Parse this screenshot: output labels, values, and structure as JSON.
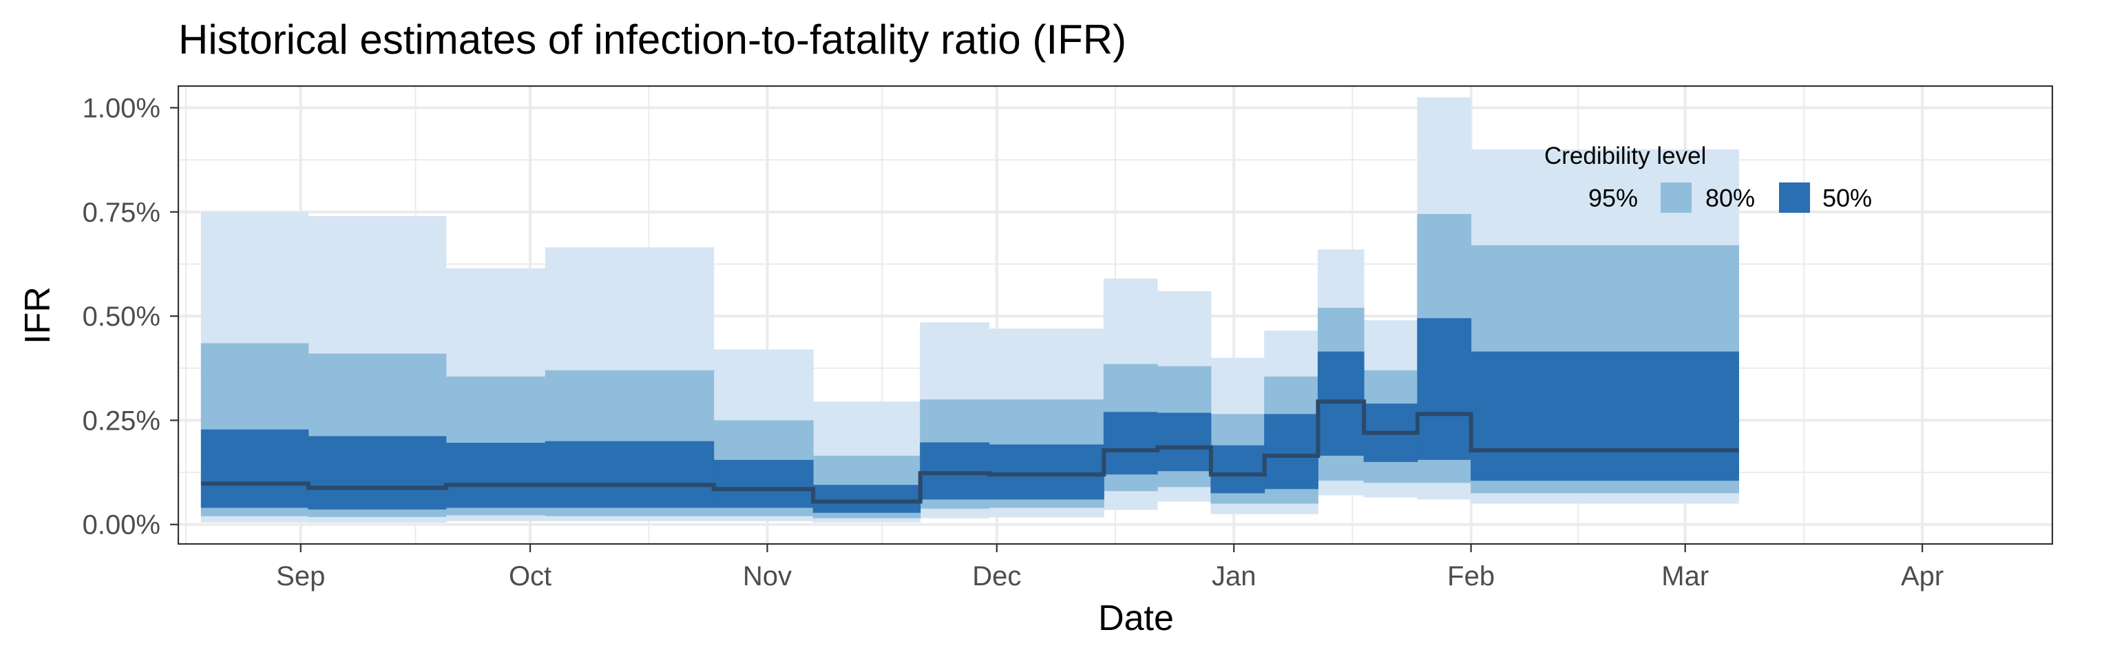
{
  "chart_data": {
    "type": "area",
    "title": "Historical estimates of infection-to-fatality ratio (IFR)",
    "xlabel": "Date",
    "ylabel": "IFR",
    "xlim": [
      "2020-08-16",
      "2021-04-18"
    ],
    "ylim": [
      -0.000467,
      0.01052
    ],
    "x_ticks": [
      {
        "date": "2020-09-01",
        "label": "Sep"
      },
      {
        "date": "2020-10-01",
        "label": "Oct"
      },
      {
        "date": "2020-11-01",
        "label": "Nov"
      },
      {
        "date": "2020-12-01",
        "label": "Dec"
      },
      {
        "date": "2021-01-01",
        "label": "Jan"
      },
      {
        "date": "2021-02-01",
        "label": "Feb"
      },
      {
        "date": "2021-03-01",
        "label": "Mar"
      },
      {
        "date": "2021-04-01",
        "label": "Apr"
      }
    ],
    "y_ticks": [
      {
        "value": 0,
        "label": "0.00%"
      },
      {
        "value": 0.0025,
        "label": "0.25%"
      },
      {
        "value": 0.005,
        "label": "0.50%"
      },
      {
        "value": 0.0075,
        "label": "0.75%"
      },
      {
        "value": 0.01,
        "label": "1.00%"
      }
    ],
    "grid": true,
    "legend": {
      "title": "Credibility level",
      "position": "top-right",
      "entries": [
        {
          "label": "95%",
          "color": "#d6e5f3"
        },
        {
          "label": "80%",
          "color": "#90bddb"
        },
        {
          "label": "50%",
          "color": "#2a6fb2"
        }
      ]
    },
    "median_color": "#2b4a6b",
    "steps": [
      {
        "start": "2020-08-19",
        "end": "2020-09-02",
        "median": 0.00098,
        "lo50": 0.0004,
        "hi50": 0.00228,
        "lo80": 0.0002,
        "hi80": 0.00435,
        "lo95": 5e-05,
        "hi95": 0.0075
      },
      {
        "start": "2020-09-02",
        "end": "2020-09-20",
        "median": 0.00088,
        "lo50": 0.00036,
        "hi50": 0.00212,
        "lo80": 0.00018,
        "hi80": 0.0041,
        "lo95": 4e-05,
        "hi95": 0.0074
      },
      {
        "start": "2020-09-20",
        "end": "2020-10-03",
        "median": 0.00095,
        "lo50": 0.0004,
        "hi50": 0.00196,
        "lo80": 0.00022,
        "hi80": 0.00355,
        "lo95": 8e-05,
        "hi95": 0.00615
      },
      {
        "start": "2020-10-03",
        "end": "2020-10-25",
        "median": 0.00095,
        "lo50": 0.0004,
        "hi50": 0.002,
        "lo80": 0.0002,
        "hi80": 0.0037,
        "lo95": 8e-05,
        "hi95": 0.00665
      },
      {
        "start": "2020-10-25",
        "end": "2020-11-07",
        "median": 0.00085,
        "lo50": 0.0004,
        "hi50": 0.00155,
        "lo80": 0.0002,
        "hi80": 0.0025,
        "lo95": 8e-05,
        "hi95": 0.0042
      },
      {
        "start": "2020-11-07",
        "end": "2020-11-21",
        "median": 0.00055,
        "lo50": 0.00028,
        "hi50": 0.00095,
        "lo80": 0.00015,
        "hi80": 0.00165,
        "lo95": 5e-05,
        "hi95": 0.00295
      },
      {
        "start": "2020-11-21",
        "end": "2020-11-30",
        "median": 0.00123,
        "lo50": 0.0006,
        "hi50": 0.00197,
        "lo80": 0.00038,
        "hi80": 0.003,
        "lo95": 0.00015,
        "hi95": 0.00485
      },
      {
        "start": "2020-11-30",
        "end": "2020-12-15",
        "median": 0.0012,
        "lo50": 0.0006,
        "hi50": 0.00192,
        "lo80": 0.0004,
        "hi80": 0.003,
        "lo95": 0.00017,
        "hi95": 0.0047
      },
      {
        "start": "2020-12-15",
        "end": "2020-12-22",
        "median": 0.00178,
        "lo50": 0.0012,
        "hi50": 0.0027,
        "lo80": 0.0008,
        "hi80": 0.00385,
        "lo95": 0.00035,
        "hi95": 0.0059
      },
      {
        "start": "2020-12-22",
        "end": "2020-12-29",
        "median": 0.00185,
        "lo50": 0.00128,
        "hi50": 0.00268,
        "lo80": 0.0009,
        "hi80": 0.0038,
        "lo95": 0.00055,
        "hi95": 0.0056
      },
      {
        "start": "2020-12-29",
        "end": "2021-01-05",
        "median": 0.0012,
        "lo50": 0.00075,
        "hi50": 0.0019,
        "lo80": 0.0005,
        "hi80": 0.00265,
        "lo95": 0.00025,
        "hi95": 0.004
      },
      {
        "start": "2021-01-05",
        "end": "2021-01-12",
        "median": 0.00165,
        "lo50": 0.00085,
        "hi50": 0.00265,
        "lo80": 0.0005,
        "hi80": 0.00355,
        "lo95": 0.00025,
        "hi95": 0.00465
      },
      {
        "start": "2021-01-12",
        "end": "2021-01-18",
        "median": 0.00295,
        "lo50": 0.00165,
        "hi50": 0.00415,
        "lo80": 0.00105,
        "hi80": 0.0052,
        "lo95": 0.0007,
        "hi95": 0.0066
      },
      {
        "start": "2021-01-18",
        "end": "2021-01-25",
        "median": 0.0022,
        "lo50": 0.0015,
        "hi50": 0.0029,
        "lo80": 0.001,
        "hi80": 0.0037,
        "lo95": 0.00065,
        "hi95": 0.0049
      },
      {
        "start": "2021-01-25",
        "end": "2021-02-01",
        "median": 0.00265,
        "lo50": 0.00155,
        "hi50": 0.00495,
        "lo80": 0.001,
        "hi80": 0.00745,
        "lo95": 0.0006,
        "hi95": 0.01025
      },
      {
        "start": "2021-02-01",
        "end": "2021-03-08",
        "median": 0.00178,
        "lo50": 0.00105,
        "hi50": 0.00415,
        "lo80": 0.00075,
        "hi80": 0.0067,
        "lo95": 0.0005,
        "hi95": 0.009
      }
    ]
  }
}
